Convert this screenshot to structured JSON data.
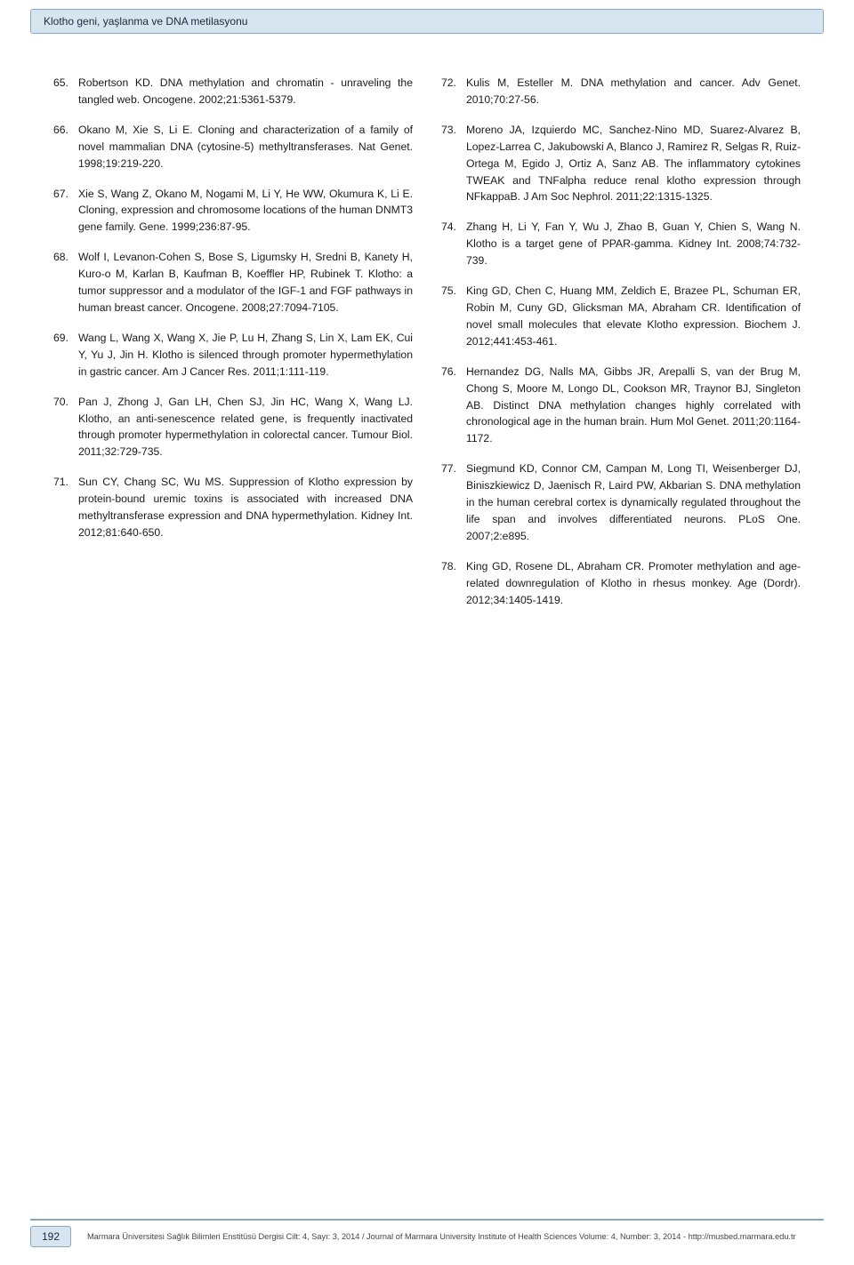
{
  "header": {
    "title": "Klotho geni, yaşlanma ve DNA metilasyonu"
  },
  "references_left": [
    {
      "num": "65.",
      "text": "Robertson KD. DNA methylation and chromatin - unraveling the tangled web. Oncogene. 2002;21:5361-5379."
    },
    {
      "num": "66.",
      "text": "Okano M, Xie S, Li E. Cloning and characterization of a family of novel mammalian DNA (cytosine-5) methyltransferases. Nat Genet. 1998;19:219-220."
    },
    {
      "num": "67.",
      "text": "Xie S, Wang Z, Okano M, Nogami M, Li Y, He WW, Okumura K, Li E. Cloning, expression and chromosome locations of the human DNMT3 gene family. Gene. 1999;236:87-95."
    },
    {
      "num": "68.",
      "text": "Wolf I, Levanon-Cohen S, Bose S, Ligumsky H, Sredni B, Kanety H, Kuro-o M, Karlan B, Kaufman B, Koeffler HP, Rubinek T. Klotho: a tumor suppressor and a modulator of the IGF-1 and FGF pathways in human breast cancer. Oncogene. 2008;27:7094-7105."
    },
    {
      "num": "69.",
      "text": "Wang L, Wang X, Wang X, Jie P, Lu H, Zhang S, Lin X, Lam EK, Cui Y, Yu J, Jin H. Klotho is silenced through promoter hypermethylation in gastric cancer. Am J Cancer Res. 2011;1:111-119."
    },
    {
      "num": "70.",
      "text": "Pan J, Zhong J, Gan LH, Chen SJ, Jin HC, Wang X, Wang LJ. Klotho, an anti-senescence related gene, is frequently inactivated through promoter hypermethylation in colorectal cancer. Tumour Biol. 2011;32:729-735."
    },
    {
      "num": "71.",
      "text": "Sun CY, Chang SC, Wu MS. Suppression of Klotho expression by protein-bound uremic toxins is associated with increased DNA methyltransferase expression and DNA hypermethylation. Kidney Int. 2012;81:640-650."
    }
  ],
  "references_right": [
    {
      "num": "72.",
      "text": "Kulis M, Esteller M. DNA methylation and cancer. Adv Genet. 2010;70:27-56."
    },
    {
      "num": "73.",
      "text": "Moreno JA, Izquierdo MC, Sanchez-Nino MD, Suarez-Alvarez B, Lopez-Larrea C, Jakubowski A, Blanco J, Ramirez R, Selgas R, Ruiz-Ortega M, Egido J, Ortiz A, Sanz AB. The inflammatory cytokines TWEAK and TNFalpha reduce renal klotho expression through NFkappaB. J Am Soc Nephrol. 2011;22:1315-1325."
    },
    {
      "num": "74.",
      "text": "Zhang H, Li Y, Fan Y, Wu J, Zhao B, Guan Y, Chien S, Wang N. Klotho is a target gene of PPAR-gamma. Kidney Int. 2008;74:732-739."
    },
    {
      "num": "75.",
      "text": "King GD, Chen C, Huang MM, Zeldich E, Brazee PL, Schuman ER, Robin M, Cuny GD, Glicksman MA, Abraham CR. Identification of novel small molecules that elevate Klotho expression. Biochem J. 2012;441:453-461."
    },
    {
      "num": "76.",
      "text": "Hernandez DG, Nalls MA, Gibbs JR, Arepalli S, van der Brug M, Chong S, Moore M, Longo DL, Cookson MR, Traynor BJ, Singleton AB. Distinct DNA methylation changes highly correlated with chronological age in the human brain. Hum Mol Genet. 2011;20:1164-1172."
    },
    {
      "num": "77.",
      "text": "Siegmund KD, Connor CM, Campan M, Long TI, Weisenberger DJ, Biniszkiewicz D, Jaenisch R, Laird PW, Akbarian S. DNA methylation in the human cerebral cortex is dynamically regulated throughout the life span and involves differentiated neurons. PLoS One. 2007;2:e895."
    },
    {
      "num": "78.",
      "text": "King GD, Rosene DL, Abraham CR. Promoter methylation and age-related downregulation of Klotho in rhesus monkey. Age (Dordr). 2012;34:1405-1419."
    }
  ],
  "footer": {
    "page_number": "192",
    "text": "Marmara Üniversitesi Sağlık Bilimleri Enstitüsü Dergisi Cilt: 4, Sayı: 3, 2014 / Journal of Marmara University Institute of Health Sciences Volume: 4, Number: 3, 2014 - http://musbed.marmara.edu.tr"
  },
  "style": {
    "header_bg": "#d6e5f0",
    "header_border": "#8aa8bd",
    "body_bg": "#ffffff",
    "text_color": "#1a1a1a",
    "ref_fontsize": 12.2,
    "footer_fontsize": 9.2
  }
}
